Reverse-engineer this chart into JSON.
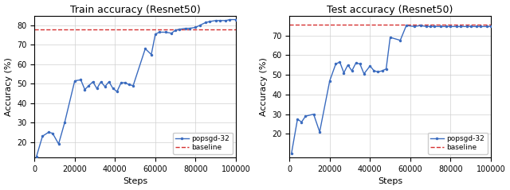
{
  "train": {
    "title": "Train accuracy (Resnet50)",
    "xlabel": "Steps",
    "ylabel": "Accuracy (%)",
    "baseline": 78.0,
    "steps": [
      1000,
      4000,
      7000,
      9000,
      12000,
      15000,
      20000,
      23000,
      25000,
      27000,
      29000,
      31000,
      33000,
      35000,
      37000,
      39000,
      41000,
      43000,
      45000,
      47000,
      49000,
      55000,
      58000,
      60000,
      62000,
      65000,
      68000,
      70000,
      72000,
      75000,
      77000,
      80000,
      82000,
      85000,
      87000,
      90000,
      92000,
      95000,
      97000,
      100000
    ],
    "values": [
      12.5,
      23.0,
      25.0,
      24.5,
      19.0,
      30.0,
      51.5,
      52.0,
      47.0,
      49.0,
      51.0,
      47.5,
      51.0,
      48.5,
      51.0,
      47.5,
      46.0,
      50.5,
      50.5,
      49.5,
      49.0,
      68.0,
      65.0,
      75.5,
      76.5,
      76.5,
      76.0,
      77.5,
      78.0,
      78.5,
      78.5,
      79.0,
      80.0,
      81.5,
      82.0,
      82.5,
      82.5,
      82.5,
      83.0,
      83.0
    ],
    "xlim": [
      0,
      100000
    ],
    "ylim": [
      12,
      85
    ],
    "yticks": [
      20,
      30,
      40,
      50,
      60,
      70,
      80
    ],
    "xticks": [
      0,
      20000,
      40000,
      60000,
      80000,
      100000
    ],
    "xtick_labels": [
      "0",
      "20000",
      "40000",
      "60000",
      "80000",
      "100000"
    ]
  },
  "test": {
    "title": "Test accuracy (Resnet50)",
    "xlabel": "Steps",
    "ylabel": "Accuracy (%)",
    "baseline": 75.3,
    "steps": [
      1000,
      4000,
      6000,
      8000,
      12000,
      15000,
      20000,
      23000,
      25000,
      27000,
      29000,
      31000,
      33000,
      35000,
      37000,
      40000,
      42000,
      44000,
      46000,
      48000,
      50000,
      55000,
      58000,
      62000,
      65000,
      68000,
      70000,
      72000,
      75000,
      78000,
      80000,
      83000,
      85000,
      88000,
      90000,
      93000,
      95000,
      98000,
      100000
    ],
    "values": [
      10.0,
      27.5,
      26.0,
      29.0,
      30.0,
      21.0,
      47.0,
      55.5,
      56.5,
      51.0,
      55.0,
      52.0,
      56.0,
      55.5,
      50.5,
      54.5,
      52.0,
      51.5,
      52.0,
      53.0,
      69.0,
      67.5,
      75.0,
      74.5,
      75.0,
      74.5,
      74.5,
      74.5,
      74.5,
      74.5,
      74.5,
      74.5,
      74.5,
      74.5,
      74.5,
      74.5,
      74.5,
      74.5,
      74.5
    ],
    "xlim": [
      0,
      100000
    ],
    "ylim": [
      8,
      80
    ],
    "yticks": [
      20,
      30,
      40,
      50,
      60,
      70
    ],
    "xticks": [
      0,
      20000,
      40000,
      60000,
      80000,
      100000
    ],
    "xtick_labels": [
      "0",
      "20000",
      "40000",
      "60000",
      "80000",
      "100000"
    ]
  },
  "line_color": "#3a6bbf",
  "baseline_color": "#d63030",
  "marker": "o",
  "marker_size": 2.5,
  "line_width": 1.0,
  "legend_popsgd": "popsgd-32",
  "legend_baseline": "baseline",
  "grid_color": "#d0d0d0",
  "bg_color": "#ffffff",
  "title_fontsize": 9,
  "label_fontsize": 8,
  "tick_fontsize": 7,
  "legend_fontsize": 6.5
}
